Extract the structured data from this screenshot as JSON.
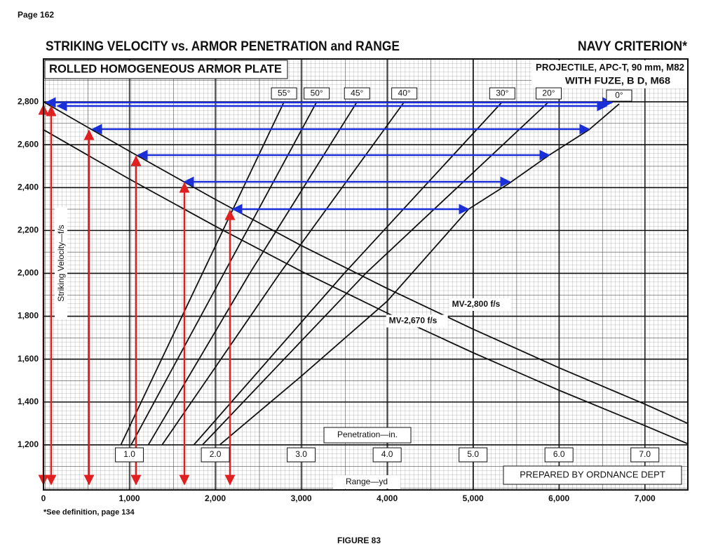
{
  "chart_data": {
    "type": "line",
    "page": "Page 162",
    "title": "STRIKING VELOCITY vs. ARMOR PENETRATION and RANGE",
    "criterion": "NAVY CRITERION*",
    "subtitle": "ROLLED HOMOGENEOUS ARMOR PLATE",
    "projectile": [
      "PROJECTILE, APC-T, 90 mm, M82",
      "WITH FUZE, B D, M68"
    ],
    "ylabel": "Striking Velocity—f/s",
    "xlabel": "Range—yd",
    "x2label": "Penetration—in.",
    "credit": "PREPARED BY ORDNANCE DEPT",
    "footnote": "*See definition, page 134",
    "figure": "FIGURE 83",
    "xlim": [
      0,
      7500
    ],
    "x2lim": [
      0,
      7.5
    ],
    "ylim": [
      990,
      3000
    ],
    "grid": true,
    "yticks": [
      {
        "value": 1200,
        "label": "1,200"
      },
      {
        "value": 1400,
        "label": "1,400"
      },
      {
        "value": 1600,
        "label": "1,600"
      },
      {
        "value": 1800,
        "label": "1,800"
      },
      {
        "value": 2000,
        "label": "2,000"
      },
      {
        "value": 2200,
        "label": "2,200"
      },
      {
        "value": 2400,
        "label": "2,400"
      },
      {
        "value": 2600,
        "label": "2,600"
      },
      {
        "value": 2800,
        "label": "2,800"
      }
    ],
    "xticks": [
      0,
      {
        "value": 1000,
        "label": "1,000"
      },
      {
        "value": 2000,
        "label": "2,000"
      },
      {
        "value": 3000,
        "label": "3,000"
      },
      {
        "value": 4000,
        "label": "4,000"
      },
      {
        "value": 5000,
        "label": "5,000"
      },
      {
        "value": 6000,
        "label": "6,000"
      },
      {
        "value": 7000,
        "label": "7,000"
      }
    ],
    "x2ticks": [
      {
        "value": 1,
        "label": "1.0"
      },
      {
        "value": 2,
        "label": "2.0"
      },
      {
        "value": 3,
        "label": "3.0"
      },
      {
        "value": 4,
        "label": "4.0"
      },
      {
        "value": 5,
        "label": "5.0"
      },
      {
        "value": 6,
        "label": "6.0"
      },
      {
        "value": 7,
        "label": "7.0"
      }
    ],
    "series": [
      {
        "name": "MV-2,800 f/s",
        "color": "#111111",
        "x": [
          0,
          1000,
          2000,
          3000,
          4000,
          5000,
          6000,
          7000,
          7500
        ],
        "values": [
          2800,
          2570,
          2345,
          2130,
          1930,
          1740,
          1560,
          1390,
          1300
        ]
      },
      {
        "name": "MV-2,670 f/s",
        "color": "#111111",
        "x": [
          0,
          1000,
          2000,
          3000,
          4000,
          5000,
          6000,
          7000,
          7500
        ],
        "values": [
          2670,
          2440,
          2220,
          2010,
          1815,
          1630,
          1455,
          1290,
          1205
        ]
      },
      {
        "name": "55°",
        "color": "#111111",
        "axis": "x2",
        "x": [
          0.9,
          1.85,
          2.8
        ],
        "values": [
          1200,
          2000,
          2800
        ]
      },
      {
        "name": "50°",
        "color": "#111111",
        "axis": "x2",
        "x": [
          1.02,
          2.1,
          3.18
        ],
        "values": [
          1200,
          2000,
          2800
        ]
      },
      {
        "name": "45°",
        "color": "#111111",
        "axis": "x2",
        "x": [
          1.22,
          2.4,
          3.65
        ],
        "values": [
          1200,
          2000,
          2800
        ]
      },
      {
        "name": "40°",
        "color": "#111111",
        "axis": "x2",
        "x": [
          1.38,
          2.75,
          4.2
        ],
        "values": [
          1200,
          2000,
          2800
        ]
      },
      {
        "name": "30°",
        "color": "#111111",
        "axis": "x2",
        "x": [
          1.75,
          3.5,
          5.34
        ],
        "values": [
          1200,
          2000,
          2800
        ]
      },
      {
        "name": "20°",
        "color": "#111111",
        "axis": "x2",
        "x": [
          1.85,
          3.75,
          5.88
        ],
        "values": [
          1200,
          2000,
          2800
        ]
      },
      {
        "name": "0°",
        "color": "#111111",
        "axis": "x2",
        "x": [
          2.05,
          3,
          4,
          4.95,
          5.42,
          5.88,
          6.35,
          6.7
        ],
        "values": [
          1200,
          1520,
          1870,
          2300,
          2420,
          2550,
          2670,
          2790
        ]
      }
    ]
  }
}
